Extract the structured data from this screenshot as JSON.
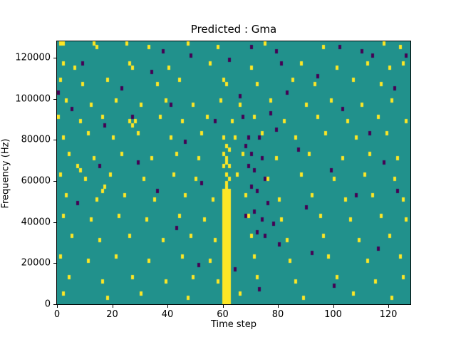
{
  "title": "Predicted : Gma",
  "xlabel": "Time step",
  "ylabel": "Frequency (Hz)",
  "chart_data": {
    "type": "heatmap",
    "title": "Predicted : Gma",
    "xlabel": "Time step",
    "ylabel": "Frequency (Hz)",
    "x_range": [
      0,
      128
    ],
    "y_range": [
      0,
      128000
    ],
    "x_ticks": [
      0,
      20,
      40,
      60,
      80,
      100,
      120
    ],
    "y_ticks": [
      0,
      20000,
      40000,
      60000,
      80000,
      100000,
      120000
    ],
    "grid": [
      128,
      64
    ],
    "legend": "none",
    "colors": {
      "background": "#21918c",
      "high": "#fde725",
      "low": "#440154"
    },
    "regions": [
      {
        "value": "high",
        "t": [
          60,
          62
        ],
        "f": [
          0,
          27
        ]
      }
    ],
    "high_cells": [
      [
        1,
        63
      ],
      [
        2,
        63
      ],
      [
        13,
        63
      ],
      [
        14,
        62
      ],
      [
        25,
        63
      ],
      [
        33,
        62
      ],
      [
        47,
        63
      ],
      [
        58,
        62
      ],
      [
        75,
        63
      ],
      [
        96,
        62
      ],
      [
        118,
        63
      ],
      [
        124,
        62
      ],
      [
        125,
        58
      ],
      [
        2,
        58
      ],
      [
        6,
        57
      ],
      [
        26,
        58
      ],
      [
        27,
        57
      ],
      [
        40,
        57
      ],
      [
        55,
        58
      ],
      [
        70,
        57
      ],
      [
        88,
        58
      ],
      [
        101,
        57
      ],
      [
        112,
        58
      ],
      [
        120,
        57
      ],
      [
        1,
        54
      ],
      [
        9,
        53
      ],
      [
        18,
        54
      ],
      [
        36,
        53
      ],
      [
        44,
        54
      ],
      [
        60,
        54
      ],
      [
        61,
        53
      ],
      [
        72,
        53
      ],
      [
        85,
        54
      ],
      [
        93,
        53
      ],
      [
        107,
        54
      ],
      [
        117,
        53
      ],
      [
        3,
        49
      ],
      [
        12,
        48
      ],
      [
        21,
        49
      ],
      [
        30,
        48
      ],
      [
        39,
        49
      ],
      [
        49,
        48
      ],
      [
        59,
        49
      ],
      [
        66,
        48
      ],
      [
        77,
        49
      ],
      [
        90,
        48
      ],
      [
        99,
        49
      ],
      [
        110,
        48
      ],
      [
        121,
        49
      ],
      [
        0,
        45
      ],
      [
        8,
        44
      ],
      [
        16,
        45
      ],
      [
        28,
        44
      ],
      [
        37,
        45
      ],
      [
        45,
        44
      ],
      [
        54,
        45
      ],
      [
        63,
        44
      ],
      [
        71,
        45
      ],
      [
        82,
        44
      ],
      [
        94,
        45
      ],
      [
        105,
        44
      ],
      [
        116,
        45
      ],
      [
        126,
        44
      ],
      [
        2,
        40
      ],
      [
        11,
        41
      ],
      [
        20,
        40
      ],
      [
        29,
        41
      ],
      [
        41,
        40
      ],
      [
        52,
        41
      ],
      [
        64,
        40
      ],
      [
        74,
        41
      ],
      [
        86,
        40
      ],
      [
        97,
        41
      ],
      [
        108,
        40
      ],
      [
        119,
        41
      ],
      [
        4,
        36
      ],
      [
        13,
        35
      ],
      [
        23,
        36
      ],
      [
        34,
        35
      ],
      [
        43,
        36
      ],
      [
        51,
        35
      ],
      [
        67,
        36
      ],
      [
        79,
        35
      ],
      [
        91,
        36
      ],
      [
        103,
        35
      ],
      [
        113,
        36
      ],
      [
        123,
        35
      ],
      [
        1,
        31
      ],
      [
        10,
        30
      ],
      [
        19,
        31
      ],
      [
        31,
        30
      ],
      [
        42,
        31
      ],
      [
        50,
        30
      ],
      [
        65,
        31
      ],
      [
        76,
        30
      ],
      [
        88,
        31
      ],
      [
        100,
        30
      ],
      [
        111,
        31
      ],
      [
        122,
        30
      ],
      [
        3,
        26
      ],
      [
        14,
        25
      ],
      [
        24,
        26
      ],
      [
        35,
        25
      ],
      [
        46,
        26
      ],
      [
        56,
        25
      ],
      [
        68,
        26
      ],
      [
        80,
        25
      ],
      [
        92,
        26
      ],
      [
        104,
        25
      ],
      [
        114,
        26
      ],
      [
        125,
        25
      ],
      [
        2,
        21
      ],
      [
        12,
        20
      ],
      [
        22,
        21
      ],
      [
        32,
        20
      ],
      [
        44,
        21
      ],
      [
        53,
        20
      ],
      [
        69,
        21
      ],
      [
        81,
        20
      ],
      [
        95,
        21
      ],
      [
        106,
        20
      ],
      [
        117,
        21
      ],
      [
        126,
        20
      ],
      [
        5,
        16
      ],
      [
        15,
        15
      ],
      [
        26,
        16
      ],
      [
        38,
        15
      ],
      [
        48,
        16
      ],
      [
        57,
        15
      ],
      [
        70,
        16
      ],
      [
        83,
        15
      ],
      [
        96,
        16
      ],
      [
        109,
        15
      ],
      [
        120,
        16
      ],
      [
        1,
        11
      ],
      [
        11,
        10
      ],
      [
        21,
        11
      ],
      [
        33,
        10
      ],
      [
        45,
        11
      ],
      [
        55,
        10
      ],
      [
        71,
        11
      ],
      [
        84,
        10
      ],
      [
        98,
        11
      ],
      [
        112,
        10
      ],
      [
        124,
        11
      ],
      [
        4,
        6
      ],
      [
        16,
        5
      ],
      [
        27,
        6
      ],
      [
        39,
        5
      ],
      [
        49,
        6
      ],
      [
        58,
        5
      ],
      [
        72,
        6
      ],
      [
        86,
        5
      ],
      [
        101,
        6
      ],
      [
        115,
        5
      ],
      [
        125,
        6
      ],
      [
        2,
        2
      ],
      [
        18,
        1
      ],
      [
        30,
        2
      ],
      [
        47,
        1
      ],
      [
        66,
        2
      ],
      [
        89,
        1
      ],
      [
        107,
        2
      ],
      [
        121,
        1
      ],
      [
        61,
        28
      ],
      [
        61,
        29
      ],
      [
        62,
        30
      ],
      [
        61,
        31
      ],
      [
        60,
        33
      ],
      [
        62,
        33
      ],
      [
        61,
        34
      ],
      [
        61,
        35
      ],
      [
        60,
        36
      ],
      [
        62,
        37
      ],
      [
        61,
        38
      ],
      [
        60,
        40
      ],
      [
        26,
        44
      ],
      [
        27,
        43
      ],
      [
        17,
        28
      ],
      [
        16,
        27
      ],
      [
        7,
        33
      ],
      [
        8,
        32
      ]
    ],
    "low_cells": [
      [
        66,
        50
      ],
      [
        67,
        45
      ],
      [
        68,
        38
      ],
      [
        69,
        33
      ],
      [
        70,
        28
      ],
      [
        71,
        22
      ],
      [
        72,
        17
      ],
      [
        73,
        40
      ],
      [
        74,
        35
      ],
      [
        75,
        30
      ],
      [
        76,
        24
      ],
      [
        77,
        46
      ],
      [
        78,
        19
      ],
      [
        79,
        42
      ],
      [
        80,
        14
      ],
      [
        5,
        47
      ],
      [
        9,
        58
      ],
      [
        17,
        43
      ],
      [
        23,
        52
      ],
      [
        29,
        34
      ],
      [
        36,
        27
      ],
      [
        41,
        48
      ],
      [
        46,
        39
      ],
      [
        52,
        29
      ],
      [
        57,
        44
      ],
      [
        62,
        59
      ],
      [
        83,
        51
      ],
      [
        87,
        37
      ],
      [
        90,
        23
      ],
      [
        94,
        55
      ],
      [
        99,
        32
      ],
      [
        103,
        47
      ],
      [
        108,
        26
      ],
      [
        113,
        41
      ],
      [
        118,
        34
      ],
      [
        122,
        52
      ],
      [
        126,
        60
      ],
      [
        0,
        51
      ],
      [
        7,
        24
      ],
      [
        15,
        33
      ],
      [
        27,
        45
      ],
      [
        34,
        56
      ],
      [
        43,
        18
      ],
      [
        51,
        9
      ],
      [
        64,
        8
      ],
      [
        73,
        3
      ],
      [
        81,
        58
      ],
      [
        92,
        12
      ],
      [
        100,
        4
      ],
      [
        110,
        61
      ],
      [
        116,
        13
      ],
      [
        123,
        27
      ],
      [
        38,
        61
      ],
      [
        48,
        60
      ],
      [
        70,
        62
      ],
      [
        79,
        61
      ],
      [
        102,
        62
      ],
      [
        114,
        60
      ],
      [
        69,
        40
      ],
      [
        70,
        36
      ],
      [
        71,
        32
      ],
      [
        72,
        27
      ],
      [
        68,
        21
      ],
      [
        74,
        20
      ],
      [
        75,
        16
      ]
    ]
  }
}
